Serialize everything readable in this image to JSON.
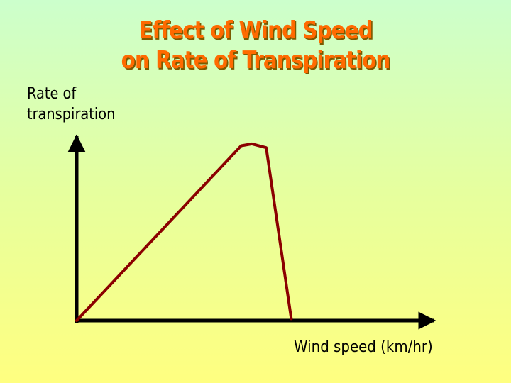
{
  "chart_data": {
    "type": "line",
    "title_lines": [
      "Effect of Wind Speed",
      "on Rate of Transpiration"
    ],
    "ylabel_lines": [
      "Rate of",
      "transpiration"
    ],
    "xlabel": "Wind speed (km/hr)",
    "xlim": [
      0,
      10
    ],
    "ylim": [
      0,
      10
    ],
    "grid": false,
    "legend": "none",
    "series": [
      {
        "x": [
          0,
          4.6,
          4.9,
          5.3,
          6.0
        ],
        "y": [
          0,
          9.3,
          9.4,
          9.2,
          0.1
        ],
        "color": "#8b0000"
      }
    ],
    "axis_color": "#000000",
    "title_color": "#ff6a00"
  }
}
